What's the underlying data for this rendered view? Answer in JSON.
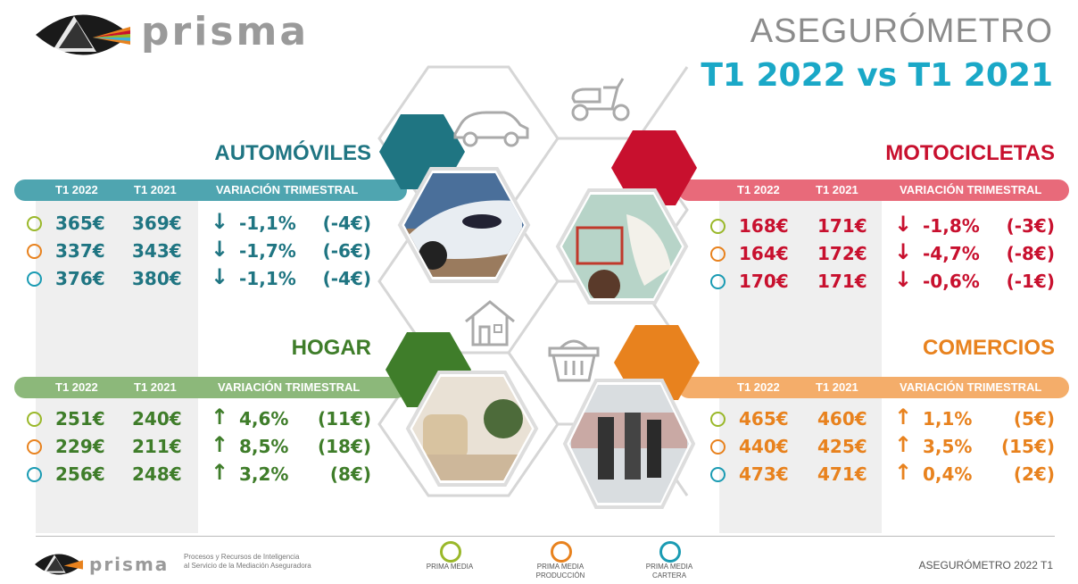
{
  "brand": {
    "name": "prisma",
    "tagline_line1": "Procesos y Recursos de Inteligencia",
    "tagline_line2": "al Servicio de la Mediación Aseguradora"
  },
  "header": {
    "title": "ASEGURÓMETRO",
    "subtitle": "T1 2022 vs T1 2021"
  },
  "col_headers": {
    "t1_2022": "T1 2022",
    "t1_2021": "T1 2021",
    "variation": "VARIACIÓN TRIMESTRAL"
  },
  "sections": {
    "automoviles": {
      "title": "AUTOMÓVILES",
      "color": "#1f7582",
      "band_color": "#4fa5b0",
      "rows": [
        {
          "v2022": "365€",
          "v2021": "369€",
          "arrow": "↓",
          "pct": "-1,1%",
          "abs": "(-4€)"
        },
        {
          "v2022": "337€",
          "v2021": "343€",
          "arrow": "↓",
          "pct": "-1,7%",
          "abs": "(-6€)"
        },
        {
          "v2022": "376€",
          "v2021": "380€",
          "arrow": "↓",
          "pct": "-1,1%",
          "abs": "(-4€)"
        }
      ]
    },
    "motocicletas": {
      "title": "MOTOCICLETAS",
      "color": "#c8102e",
      "band_color": "#e86a7a",
      "rows": [
        {
          "v2022": "168€",
          "v2021": "171€",
          "arrow": "↓",
          "pct": "-1,8%",
          "abs": "(-3€)"
        },
        {
          "v2022": "164€",
          "v2021": "172€",
          "arrow": "↓",
          "pct": "-4,7%",
          "abs": "(-8€)"
        },
        {
          "v2022": "170€",
          "v2021": "171€",
          "arrow": "↓",
          "pct": "-0,6%",
          "abs": "(-1€)"
        }
      ]
    },
    "hogar": {
      "title": "HOGAR",
      "color": "#3f7d2a",
      "band_color": "#8cb87a",
      "rows": [
        {
          "v2022": "251€",
          "v2021": "240€",
          "arrow": "↑",
          "pct": "4,6%",
          "abs": "(11€)"
        },
        {
          "v2022": "229€",
          "v2021": "211€",
          "arrow": "↑",
          "pct": "8,5%",
          "abs": "(18€)"
        },
        {
          "v2022": "256€",
          "v2021": "248€",
          "arrow": "↑",
          "pct": "3,2%",
          "abs": "(8€)"
        }
      ]
    },
    "comercios": {
      "title": "COMERCIOS",
      "color": "#e8821e",
      "band_color": "#f4ad6a",
      "rows": [
        {
          "v2022": "465€",
          "v2021": "460€",
          "arrow": "↑",
          "pct": "1,1%",
          "abs": "(5€)"
        },
        {
          "v2022": "440€",
          "v2021": "425€",
          "arrow": "↑",
          "pct": "3,5%",
          "abs": "(15€)"
        },
        {
          "v2022": "473€",
          "v2021": "471€",
          "arrow": "↑",
          "pct": "0,4%",
          "abs": "(2€)"
        }
      ]
    }
  },
  "legend": [
    {
      "label_line1": "PRIMA MEDIA",
      "label_line2": "",
      "color": "#9ab82a"
    },
    {
      "label_line1": "PRIMA MEDIA",
      "label_line2": "PRODUCCIÓN",
      "color": "#e8821e"
    },
    {
      "label_line1": "PRIMA MEDIA",
      "label_line2": "CARTERA",
      "color": "#1a9bb3"
    }
  ],
  "footer": {
    "right_text": "ASEGURÓMETRO 2022 T1"
  },
  "icons": [
    "eye-prism-logo-icon",
    "car-icon",
    "scooter-icon",
    "house-icon",
    "basket-icon"
  ]
}
